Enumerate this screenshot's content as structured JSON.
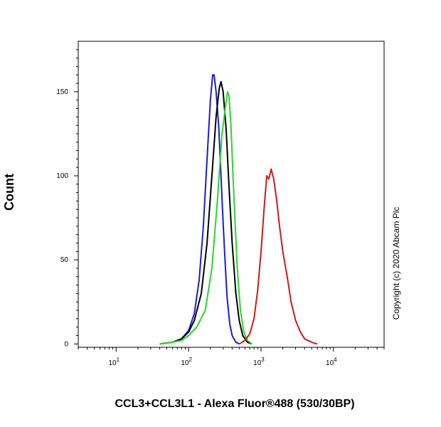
{
  "chart_data": {
    "type": "line",
    "title": "",
    "xlabel": "CCL3+CCL3L1 - Alexa Fluor®488 (530/30BP)",
    "ylabel": "Count",
    "x_scale": "log",
    "xlim": [
      3,
      50000
    ],
    "ylim": [
      -2,
      180
    ],
    "x_ticks": [
      {
        "value": 10,
        "base": "10",
        "exp": "1"
      },
      {
        "value": 100,
        "base": "10",
        "exp": "2"
      },
      {
        "value": 1000,
        "base": "10",
        "exp": "3"
      },
      {
        "value": 10000,
        "base": "10",
        "exp": "4"
      }
    ],
    "y_ticks": [
      {
        "value": 0,
        "label": "0"
      },
      {
        "value": 50,
        "label": "50"
      },
      {
        "value": 100,
        "label": "100"
      },
      {
        "value": 150,
        "label": "150"
      }
    ],
    "grid": false,
    "annotation": "Copyright (c) 2020 Abcam Plc",
    "series": [
      {
        "color": "#1c1ccf",
        "points": [
          [
            40,
            0
          ],
          [
            60,
            1
          ],
          [
            80,
            3
          ],
          [
            100,
            8
          ],
          [
            120,
            18
          ],
          [
            140,
            38
          ],
          [
            160,
            70
          ],
          [
            180,
            110
          ],
          [
            200,
            145
          ],
          [
            215,
            160
          ],
          [
            225,
            160
          ],
          [
            240,
            150
          ],
          [
            260,
            130
          ],
          [
            280,
            100
          ],
          [
            300,
            72
          ],
          [
            320,
            48
          ],
          [
            340,
            28
          ],
          [
            370,
            12
          ],
          [
            400,
            5
          ],
          [
            450,
            1
          ],
          [
            500,
            0
          ]
        ]
      },
      {
        "color": "#000000",
        "points": [
          [
            40,
            0
          ],
          [
            60,
            1
          ],
          [
            80,
            3
          ],
          [
            100,
            7
          ],
          [
            120,
            14
          ],
          [
            150,
            30
          ],
          [
            180,
            60
          ],
          [
            210,
            100
          ],
          [
            240,
            135
          ],
          [
            265,
            152
          ],
          [
            280,
            156
          ],
          [
            300,
            150
          ],
          [
            330,
            128
          ],
          [
            360,
            95
          ],
          [
            400,
            60
          ],
          [
            450,
            30
          ],
          [
            500,
            14
          ],
          [
            560,
            5
          ],
          [
            650,
            1
          ],
          [
            750,
            0
          ]
        ]
      },
      {
        "color": "#26d926",
        "points": [
          [
            40,
            0
          ],
          [
            60,
            1
          ],
          [
            80,
            2
          ],
          [
            100,
            5
          ],
          [
            130,
            10
          ],
          [
            170,
            20
          ],
          [
            210,
            45
          ],
          [
            250,
            85
          ],
          [
            290,
            125
          ],
          [
            320,
            140
          ],
          [
            345,
            150
          ],
          [
            360,
            148
          ],
          [
            385,
            130
          ],
          [
            420,
            90
          ],
          [
            470,
            45
          ],
          [
            520,
            20
          ],
          [
            580,
            7
          ],
          [
            650,
            2
          ],
          [
            750,
            0
          ]
        ]
      },
      {
        "color": "#cc1a1a",
        "points": [
          [
            500,
            0
          ],
          [
            600,
            2
          ],
          [
            700,
            6
          ],
          [
            800,
            15
          ],
          [
            900,
            32
          ],
          [
            1000,
            55
          ],
          [
            1100,
            80
          ],
          [
            1200,
            100
          ],
          [
            1280,
            98
          ],
          [
            1380,
            104
          ],
          [
            1500,
            98
          ],
          [
            1650,
            85
          ],
          [
            1800,
            70
          ],
          [
            2000,
            55
          ],
          [
            2300,
            40
          ],
          [
            2600,
            25
          ],
          [
            3000,
            14
          ],
          [
            3500,
            7
          ],
          [
            4000,
            3
          ],
          [
            5000,
            1
          ],
          [
            6000,
            0
          ]
        ]
      }
    ]
  }
}
